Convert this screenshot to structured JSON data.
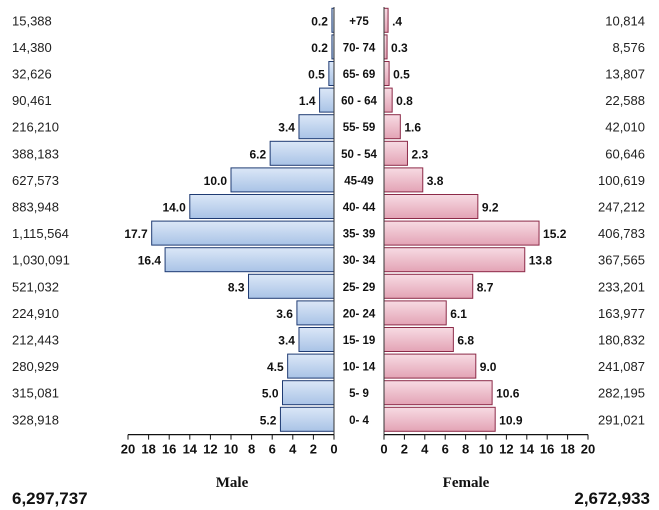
{
  "chart_data": {
    "type": "bar",
    "orientation": "horizontal-population-pyramid",
    "categories": [
      "+75",
      "70- 74",
      "65- 69",
      "60 - 64",
      "55- 59",
      "50 - 54",
      "45-49",
      "40- 44",
      "35- 39",
      "30- 34",
      "25- 29",
      "20- 24",
      "15- 19",
      "10- 14",
      "5- 9",
      "0- 4"
    ],
    "series": [
      {
        "name": "Male",
        "values": [
          0.2,
          0.2,
          0.5,
          1.4,
          3.4,
          6.2,
          10.0,
          14.0,
          17.7,
          16.4,
          8.3,
          3.6,
          3.4,
          4.5,
          5.0,
          5.2
        ],
        "value_labels": [
          "0.2",
          "0.2",
          "0.5",
          "1.4",
          "3.4",
          "6.2",
          "10.0",
          "14.0",
          "17.7",
          "16.4",
          "8.3",
          "3.6",
          "3.4",
          "4.5",
          "5.0",
          "5.2"
        ],
        "counts": [
          "15,388",
          "14,380",
          "32,626",
          "90,461",
          "216,210",
          "388,183",
          "627,573",
          "883,948",
          "1,115,564",
          "1,030,091",
          "521,032",
          "224,910",
          "212,443",
          "280,929",
          "315,081",
          "328,918"
        ],
        "total": "6,297,737",
        "color": "#c5d9f1"
      },
      {
        "name": "Female",
        "values": [
          0.4,
          0.3,
          0.5,
          0.8,
          1.6,
          2.3,
          3.8,
          9.2,
          15.2,
          13.8,
          8.7,
          6.1,
          6.8,
          9.0,
          10.6,
          10.9
        ],
        "value_labels": [
          ".4",
          "0.3",
          "0.5",
          "0.8",
          "1.6",
          "2.3",
          "3.8",
          "9.2",
          "15.2",
          "13.8",
          "8.7",
          "6.1",
          "6.8",
          "9.0",
          "10.6",
          "10.9"
        ],
        "counts": [
          "10,814",
          "8,576",
          "13,807",
          "22,588",
          "42,010",
          "60,646",
          "100,619",
          "247,212",
          "406,783",
          "367,565",
          "233,201",
          "163,977",
          "180,832",
          "241,087",
          "282,195",
          "291,021"
        ],
        "total": "2,672,933",
        "color": "#f0c3d0"
      }
    ],
    "axis_ticks": [
      "0",
      "2",
      "4",
      "6",
      "8",
      "10",
      "12",
      "14",
      "16",
      "18",
      "20"
    ],
    "xlim": [
      0,
      20
    ],
    "xlabel_left": "Male",
    "xlabel_right": "Female",
    "grid": false,
    "legend": "none"
  }
}
